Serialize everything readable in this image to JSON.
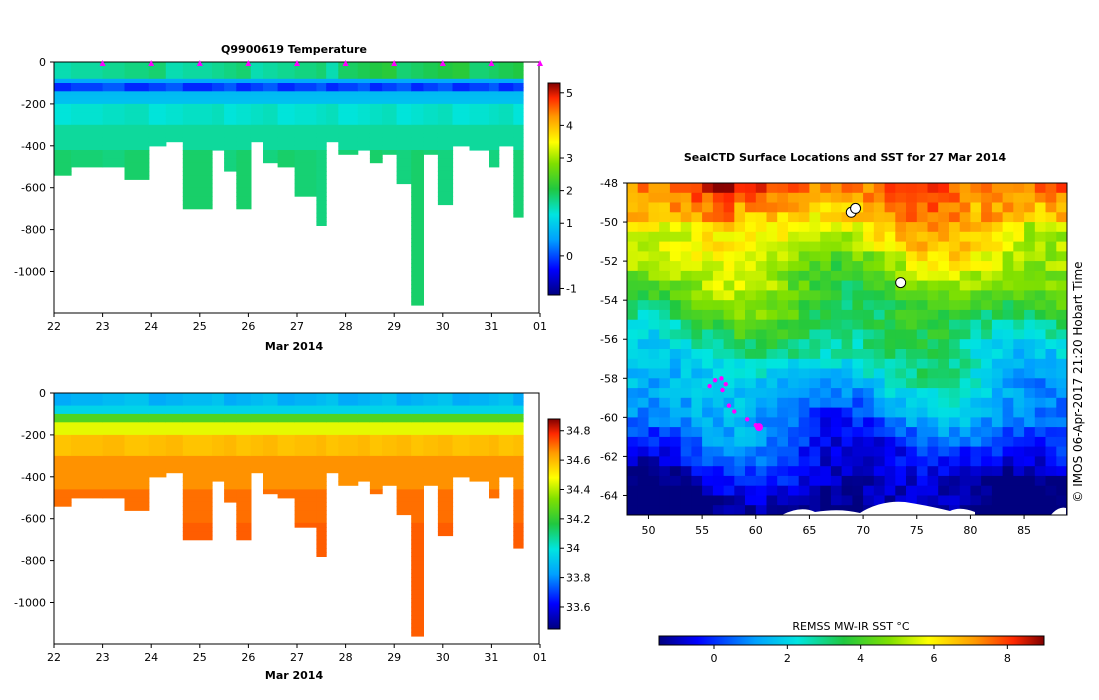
{
  "chart_data": [
    {
      "type": "heatmap",
      "title": "Q9900619  Temperature",
      "xlabel": "Mar 2014",
      "ylabel": "",
      "x_ticks": [
        "22",
        "23",
        "24",
        "25",
        "26",
        "27",
        "28",
        "29",
        "30",
        "31",
        "01"
      ],
      "y_ticks": [
        0,
        -200,
        -400,
        -600,
        -800,
        -1000
      ],
      "ylim": [
        -1200,
        0
      ],
      "colorbar_ticks": [
        5,
        4,
        3,
        2,
        1,
        0,
        -1
      ],
      "colorbar_range": [
        -1.2,
        5.3
      ],
      "profile_markers_day": [
        1,
        2,
        3,
        4,
        5,
        6,
        7,
        8,
        9,
        10
      ],
      "profiles": [
        {
          "t": 0.0,
          "w": 0.35,
          "max_depth": 540
        },
        {
          "t": 0.35,
          "w": 0.65,
          "max_depth": 500
        },
        {
          "t": 1.0,
          "w": 0.45,
          "max_depth": 500
        },
        {
          "t": 1.45,
          "w": 0.5,
          "max_depth": 560
        },
        {
          "t": 1.95,
          "w": 0.35,
          "max_depth": 385
        },
        {
          "t": 2.3,
          "w": 0.35,
          "max_depth": 380
        },
        {
          "t": 2.65,
          "w": 0.6,
          "max_depth": 690
        },
        {
          "t": 3.25,
          "w": 0.25,
          "max_depth": 420
        },
        {
          "t": 3.5,
          "w": 0.25,
          "max_depth": 520
        },
        {
          "t": 3.75,
          "w": 0.3,
          "max_depth": 690
        },
        {
          "t": 4.05,
          "w": 0.25,
          "max_depth": 370
        },
        {
          "t": 4.3,
          "w": 0.3,
          "max_depth": 470
        },
        {
          "t": 4.6,
          "w": 0.35,
          "max_depth": 500
        },
        {
          "t": 4.95,
          "w": 0.45,
          "max_depth": 630
        },
        {
          "t": 5.4,
          "w": 0.2,
          "max_depth": 770
        },
        {
          "t": 5.6,
          "w": 0.25,
          "max_depth": 380
        },
        {
          "t": 5.85,
          "w": 0.4,
          "max_depth": 440
        },
        {
          "t": 6.25,
          "w": 0.25,
          "max_depth": 410
        },
        {
          "t": 6.5,
          "w": 0.25,
          "max_depth": 480
        },
        {
          "t": 6.75,
          "w": 0.3,
          "max_depth": 430
        },
        {
          "t": 7.05,
          "w": 0.3,
          "max_depth": 580
        },
        {
          "t": 7.35,
          "w": 0.25,
          "max_depth": 1160
        },
        {
          "t": 7.6,
          "w": 0.3,
          "max_depth": 430
        },
        {
          "t": 7.9,
          "w": 0.3,
          "max_depth": 680
        },
        {
          "t": 8.2,
          "w": 0.35,
          "max_depth": 400
        },
        {
          "t": 8.55,
          "w": 0.4,
          "max_depth": 410
        },
        {
          "t": 8.95,
          "w": 0.2,
          "max_depth": 500
        },
        {
          "t": 9.15,
          "w": 0.3,
          "max_depth": 400
        },
        {
          "t": 9.45,
          "w": 0.2,
          "max_depth": 740
        }
      ]
    },
    {
      "type": "heatmap",
      "title": "",
      "xlabel": "Mar 2014",
      "ylabel": "",
      "x_ticks": [
        "22",
        "23",
        "24",
        "25",
        "26",
        "27",
        "28",
        "29",
        "30",
        "31",
        "01"
      ],
      "y_ticks": [
        0,
        -200,
        -400,
        -600,
        -800,
        -1000
      ],
      "ylim": [
        -1200,
        0
      ],
      "colorbar_ticks": [
        "34.8",
        "34.6",
        "34.4",
        "34.2",
        "34",
        "33.8",
        "33.6"
      ],
      "colorbar_range": [
        33.45,
        34.88
      ],
      "profiles_same_as_temperature": true
    },
    {
      "type": "heatmap",
      "title": "SealCTD Surface Locations and SST for 27 Mar 2014",
      "xlabel": "",
      "ylabel": "",
      "x_ticks": [
        "50",
        "55",
        "60",
        "65",
        "70",
        "75",
        "80",
        "85"
      ],
      "y_ticks": [
        "-48",
        "-50",
        "-52",
        "-54",
        "-56",
        "-58",
        "-60",
        "-62",
        "-64"
      ],
      "xlim": [
        48,
        89
      ],
      "ylim": [
        -65,
        -48
      ],
      "colorbar_label": "REMSS MW-IR SST °C",
      "colorbar_ticks": [
        "0",
        "2",
        "4",
        "6",
        "8"
      ],
      "colorbar_range": [
        -1.5,
        9
      ],
      "seal_track": [
        {
          "lon": 55.7,
          "lat": -58.4
        },
        {
          "lon": 56.2,
          "lat": -58.1
        },
        {
          "lon": 56.8,
          "lat": -58.0
        },
        {
          "lon": 57.2,
          "lat": -58.3
        },
        {
          "lon": 56.9,
          "lat": -58.6
        },
        {
          "lon": 57.5,
          "lat": -59.4
        },
        {
          "lon": 58.0,
          "lat": -59.7
        },
        {
          "lon": 59.2,
          "lat": -60.1
        },
        {
          "lon": 60.0,
          "lat": -60.4
        },
        {
          "lon": 60.3,
          "lat": -60.5
        }
      ],
      "land": [
        {
          "lon": 68.9,
          "lat": -49.5
        },
        {
          "lon": 69.3,
          "lat": -49.3
        },
        {
          "lon": 73.5,
          "lat": -53.1
        }
      ]
    }
  ],
  "credit": "© IMOS 06-Apr-2017 21:20 Hobart Time",
  "colors": {
    "frame": "#000000",
    "marker": "#ff00ff",
    "ice": "#ffffff"
  }
}
